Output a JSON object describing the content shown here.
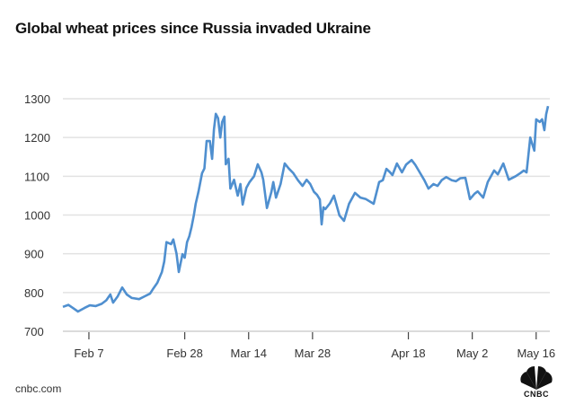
{
  "chart_data": {
    "type": "line",
    "title": "Global wheat prices since Russia invaded Ukraine",
    "xlabel": "",
    "ylabel": "",
    "x_ticks": [
      {
        "value": 0,
        "label": "Feb 7"
      },
      {
        "value": 21,
        "label": "Feb 28"
      },
      {
        "value": 35,
        "label": "Mar 14"
      },
      {
        "value": 49,
        "label": "Mar 28"
      },
      {
        "value": 70,
        "label": "Apr 18"
      },
      {
        "value": 84,
        "label": "May 2"
      },
      {
        "value": 98,
        "label": "May 16"
      }
    ],
    "y_ticks": [
      700,
      800,
      900,
      1000,
      1100,
      1200,
      1300
    ],
    "xlim": [
      -5.7,
      101
    ],
    "ylim": [
      700,
      1300
    ],
    "grid": true,
    "color": "#4f8fcf",
    "series": [
      {
        "name": "Wheat price",
        "points": [
          [
            -5.7,
            763
          ],
          [
            -4.5,
            768
          ],
          [
            -3.5,
            760
          ],
          [
            -2.4,
            751
          ],
          [
            -1,
            760
          ],
          [
            0.2,
            767
          ],
          [
            1.5,
            765
          ],
          [
            2.8,
            771
          ],
          [
            3.8,
            780
          ],
          [
            4.7,
            795
          ],
          [
            5.3,
            774
          ],
          [
            6.3,
            790
          ],
          [
            7.3,
            813
          ],
          [
            8.3,
            795
          ],
          [
            9.4,
            786
          ],
          [
            11,
            783
          ],
          [
            12.2,
            790
          ],
          [
            13.4,
            797
          ],
          [
            14.2,
            812
          ],
          [
            15,
            825
          ],
          [
            16,
            853
          ],
          [
            16.5,
            880
          ],
          [
            17,
            930
          ],
          [
            18,
            925
          ],
          [
            18.5,
            937
          ],
          [
            19.2,
            900
          ],
          [
            19.7,
            853
          ],
          [
            20.5,
            899
          ],
          [
            21,
            890
          ],
          [
            21.5,
            930
          ],
          [
            22,
            945
          ],
          [
            22.5,
            969
          ],
          [
            23,
            1000
          ],
          [
            23.4,
            1029
          ],
          [
            24,
            1060
          ],
          [
            24.8,
            1108
          ],
          [
            25.3,
            1120
          ],
          [
            25.8,
            1191
          ],
          [
            26.5,
            1191
          ],
          [
            27,
            1145
          ],
          [
            27.4,
            1220
          ],
          [
            27.8,
            1261
          ],
          [
            28.3,
            1250
          ],
          [
            28.8,
            1200
          ],
          [
            29.2,
            1240
          ],
          [
            29.7,
            1254
          ],
          [
            30,
            1131
          ],
          [
            30.6,
            1145
          ],
          [
            31,
            1068
          ],
          [
            31.8,
            1091
          ],
          [
            32.6,
            1050
          ],
          [
            33.2,
            1080
          ],
          [
            33.7,
            1027
          ],
          [
            34.5,
            1070
          ],
          [
            35.2,
            1085
          ],
          [
            36.2,
            1100
          ],
          [
            37,
            1131
          ],
          [
            37.8,
            1110
          ],
          [
            38.2,
            1091
          ],
          [
            39,
            1018
          ],
          [
            40,
            1060
          ],
          [
            40.4,
            1085
          ],
          [
            41,
            1045
          ],
          [
            42,
            1080
          ],
          [
            42.9,
            1133
          ],
          [
            43.8,
            1120
          ],
          [
            44.8,
            1108
          ],
          [
            45.8,
            1090
          ],
          [
            46.8,
            1075
          ],
          [
            47.7,
            1091
          ],
          [
            48.5,
            1080
          ],
          [
            49.3,
            1060
          ],
          [
            50,
            1052
          ],
          [
            50.6,
            1040
          ],
          [
            51,
            976
          ],
          [
            51.4,
            1020
          ],
          [
            51.8,
            1015
          ],
          [
            52.8,
            1030
          ],
          [
            53.7,
            1050
          ],
          [
            54.4,
            1020
          ],
          [
            54.9,
            999
          ],
          [
            55.9,
            985
          ],
          [
            57,
            1029
          ],
          [
            58.3,
            1057
          ],
          [
            59.5,
            1045
          ],
          [
            60.7,
            1041
          ],
          [
            62.4,
            1029
          ],
          [
            63.6,
            1085
          ],
          [
            64.4,
            1090
          ],
          [
            65.2,
            1119
          ],
          [
            66,
            1110
          ],
          [
            66.5,
            1103
          ],
          [
            67.5,
            1133
          ],
          [
            68.6,
            1110
          ],
          [
            69.5,
            1130
          ],
          [
            70.7,
            1142
          ],
          [
            71.5,
            1130
          ],
          [
            72.6,
            1108
          ],
          [
            73.5,
            1090
          ],
          [
            74.4,
            1068
          ],
          [
            75.5,
            1080
          ],
          [
            76.4,
            1075
          ],
          [
            77.3,
            1090
          ],
          [
            78.3,
            1098
          ],
          [
            79.5,
            1090
          ],
          [
            80.4,
            1087
          ],
          [
            81.4,
            1095
          ],
          [
            82.5,
            1096
          ],
          [
            83.5,
            1041
          ],
          [
            84.5,
            1055
          ],
          [
            85.2,
            1061
          ],
          [
            86.4,
            1045
          ],
          [
            87.4,
            1085
          ],
          [
            88.8,
            1115
          ],
          [
            89.6,
            1105
          ],
          [
            90.8,
            1133
          ],
          [
            92,
            1091
          ],
          [
            93.5,
            1100
          ],
          [
            94.5,
            1108
          ],
          [
            95.3,
            1115
          ],
          [
            95.9,
            1110
          ],
          [
            96.7,
            1200
          ],
          [
            97.6,
            1166
          ],
          [
            98,
            1247
          ],
          [
            98.8,
            1240
          ],
          [
            99.3,
            1247
          ],
          [
            99.8,
            1219
          ],
          [
            100.2,
            1260
          ],
          [
            100.6,
            1281
          ]
        ]
      }
    ]
  },
  "footer": {
    "source": "cnbc.com",
    "logo_text": "CNBC"
  }
}
